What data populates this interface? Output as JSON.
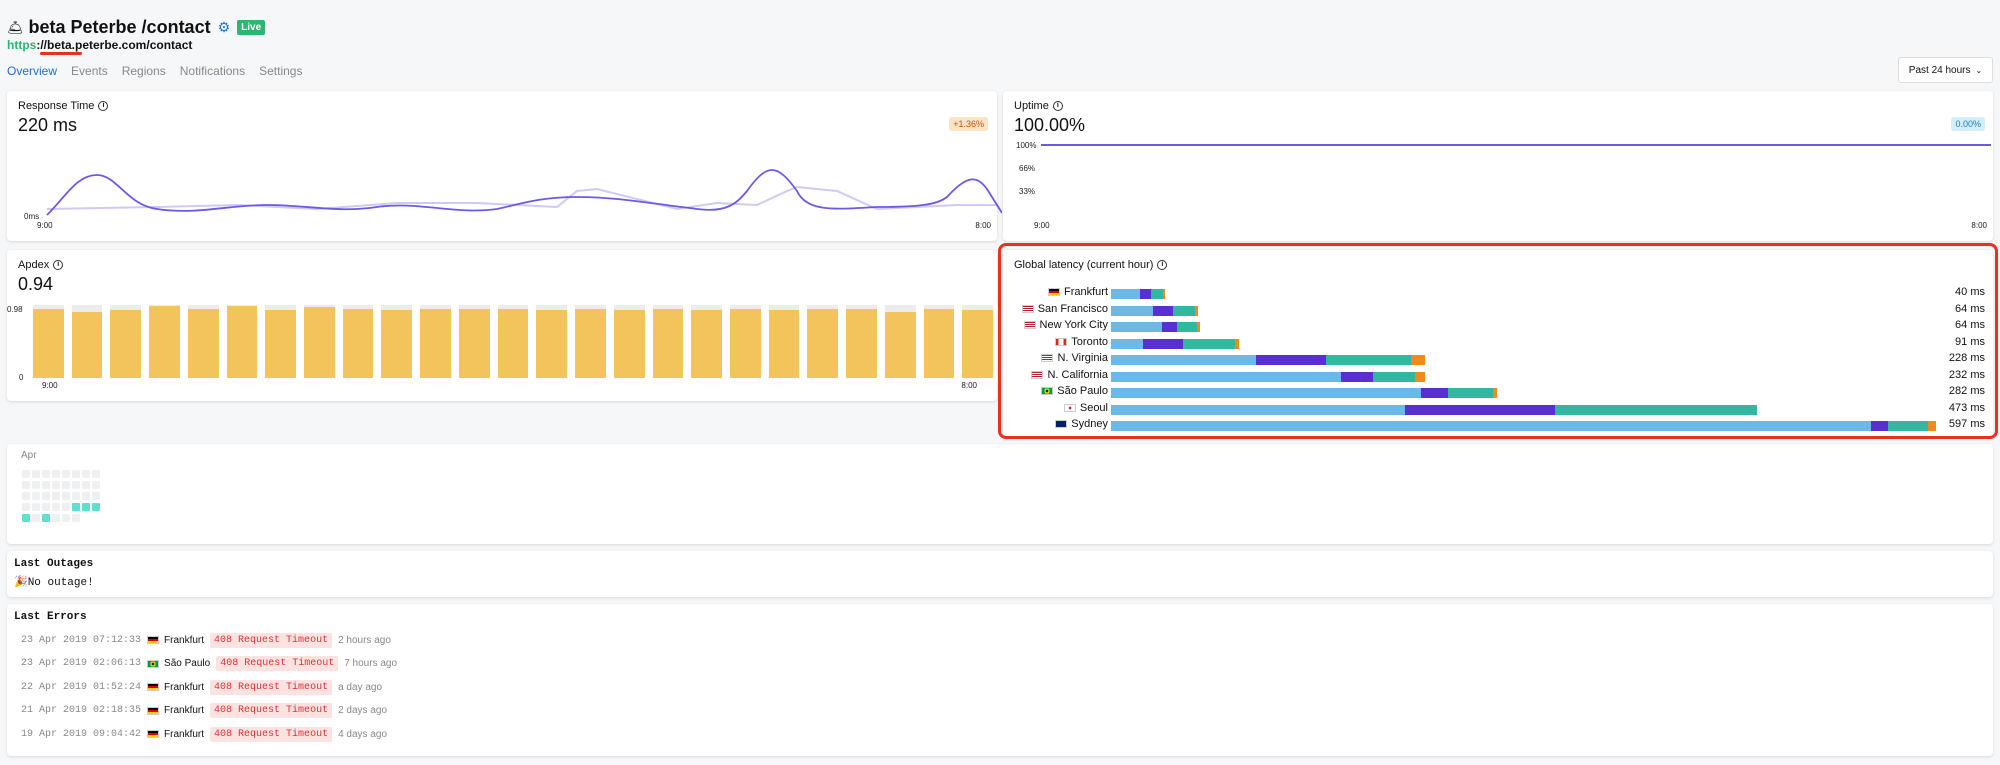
{
  "header": {
    "title": "beta Peterbe /contact",
    "live_badge": "Live",
    "url_scheme": "https",
    "url_rest": "://beta.peterbe.com/contact"
  },
  "nav": {
    "tabs": [
      "Overview",
      "Events",
      "Regions",
      "Notifications",
      "Settings"
    ],
    "active": "Overview"
  },
  "time_select": "Past 24 hours",
  "response_time": {
    "title": "Response Time",
    "value": "220 ms",
    "change": "+1.36%",
    "y_tick": "0ms",
    "x_start": "9:00",
    "x_end": "8:00"
  },
  "uptime": {
    "title": "Uptime",
    "value": "100.00%",
    "change": "0.00%",
    "y_ticks": [
      "100%",
      "66%",
      "33%"
    ],
    "x_start": "9:00",
    "x_end": "8:00"
  },
  "apdex": {
    "title": "Apdex",
    "value": "0.94",
    "y_top": "0.98",
    "y_zero": "0",
    "x_start": "9:00",
    "x_end": "8:00",
    "bars": [
      0.93,
      0.89,
      0.91,
      0.97,
      0.93,
      0.96,
      0.91,
      0.95,
      0.92,
      0.91,
      0.93,
      0.92,
      0.93,
      0.91,
      0.92,
      0.91,
      0.93,
      0.91,
      0.93,
      0.91,
      0.92,
      0.92,
      0.89,
      0.92,
      0.91
    ]
  },
  "global_latency": {
    "title": "Global latency (current hour)",
    "rows": [
      {
        "city": "Frankfurt",
        "flag": "de",
        "ms": "40 ms",
        "segs": [
          29,
          11,
          12,
          2
        ]
      },
      {
        "city": "San Francisco",
        "flag": "us",
        "ms": "64 ms",
        "segs": [
          42,
          20,
          22,
          3
        ]
      },
      {
        "city": "New York City",
        "flag": "us",
        "ms": "64 ms",
        "segs": [
          51,
          15,
          20,
          3
        ]
      },
      {
        "city": "Toronto",
        "flag": "ca",
        "ms": "91 ms",
        "segs": [
          32,
          40,
          52,
          4
        ]
      },
      {
        "city": "N. Virginia",
        "flag": "us",
        "ms": "228 ms",
        "segs": [
          145,
          70,
          85,
          14
        ]
      },
      {
        "city": "N. California",
        "flag": "us",
        "ms": "232 ms",
        "segs": [
          230,
          32,
          42,
          10
        ]
      },
      {
        "city": "São Paulo",
        "flag": "br",
        "ms": "282 ms",
        "segs": [
          310,
          27,
          45,
          4
        ]
      },
      {
        "city": "Seoul",
        "flag": "kr",
        "ms": "473 ms",
        "segs": [
          294,
          150,
          202,
          0
        ]
      },
      {
        "city": "Sydney",
        "flag": "au",
        "ms": "597 ms",
        "segs": [
          760,
          17,
          40,
          8
        ]
      }
    ]
  },
  "calendar": {
    "month": "Apr"
  },
  "outages": {
    "title": "Last Outages",
    "text": "No outage!"
  },
  "errors": {
    "title": "Last Errors",
    "rows": [
      {
        "time": "23 Apr 2019 07:12:33",
        "flag": "de",
        "city": "Frankfurt",
        "error": "408 Request Timeout",
        "ago": "2 hours ago"
      },
      {
        "time": "23 Apr 2019 02:06:13",
        "flag": "br",
        "city": "São Paulo",
        "error": "408 Request Timeout",
        "ago": "7 hours ago"
      },
      {
        "time": "22 Apr 2019 01:52:24",
        "flag": "de",
        "city": "Frankfurt",
        "error": "408 Request Timeout",
        "ago": "a day ago"
      },
      {
        "time": "21 Apr 2019 02:18:35",
        "flag": "de",
        "city": "Frankfurt",
        "error": "408 Request Timeout",
        "ago": "2 days ago"
      },
      {
        "time": "19 Apr 2019 09:04:42",
        "flag": "de",
        "city": "Frankfurt",
        "error": "408 Request Timeout",
        "ago": "4 days ago"
      }
    ]
  },
  "colors": {
    "accent": "#1b6fd8",
    "live": "#2bb673",
    "apdex_bar": "#f3c35c",
    "lat_dns": "#6cb8e6",
    "lat_connect": "#5a2fd1",
    "lat_tls": "#33b8a0",
    "lat_wait": "#ef8a1b",
    "highlight": "#e8321f"
  }
}
